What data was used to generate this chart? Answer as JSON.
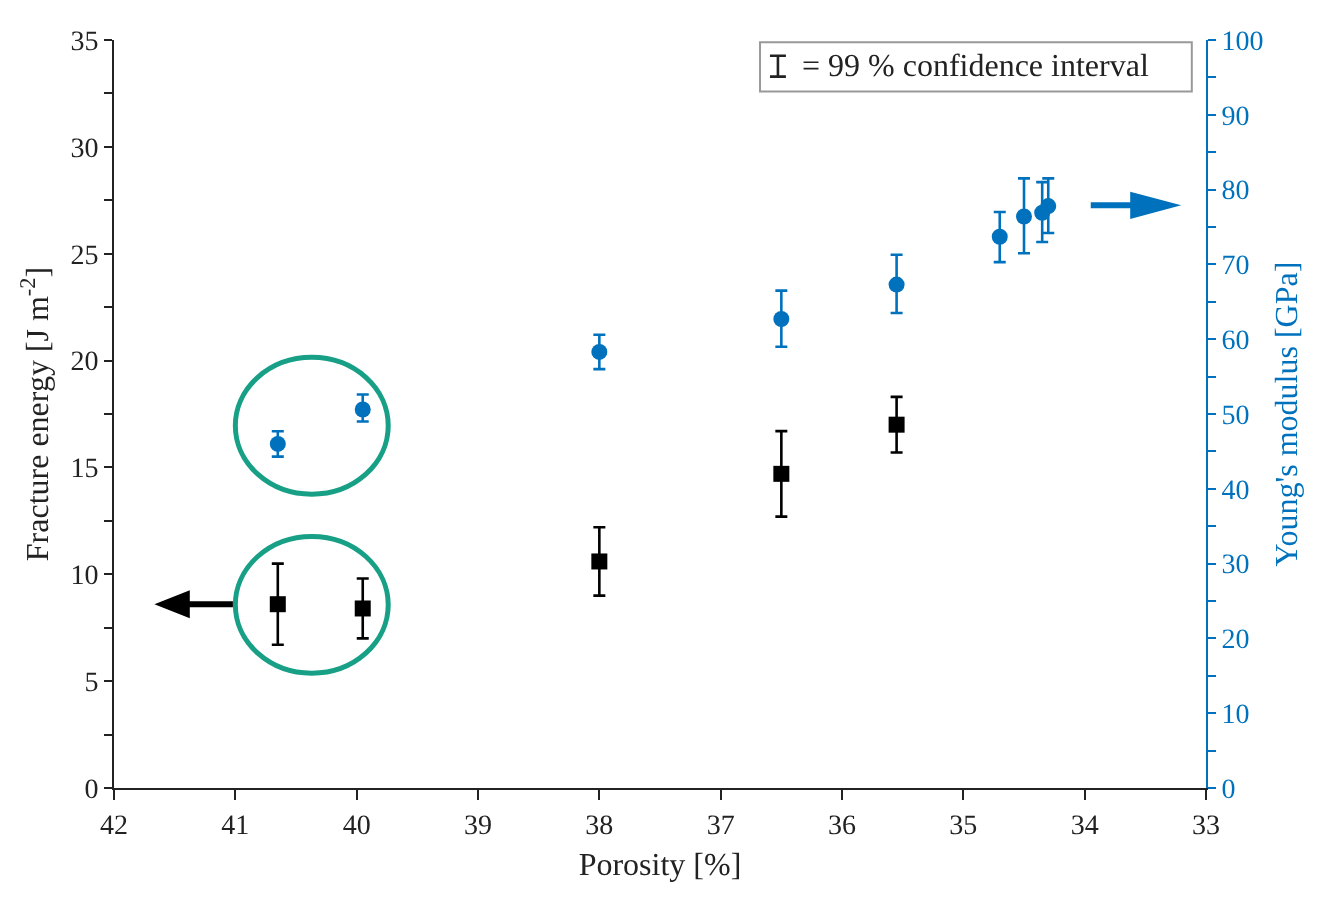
{
  "chart_data": {
    "type": "scatter",
    "xlabel": "Porosity [%]",
    "ylabel": "Fracture energy [J m$^{-2}$]",
    "y2label": "Young's modulus [GPa]",
    "annotations": [
      "= 99 % confidence interval"
    ],
    "xlim": [
      42,
      33
    ],
    "xticks": [
      42,
      41,
      40,
      39,
      38,
      37,
      36,
      35,
      34,
      33
    ],
    "ylim": [
      0,
      35
    ],
    "yticks": [
      0,
      {
        "value": 2.5,
        "label": null
      },
      5,
      {
        "value": 7.5,
        "label": null
      },
      10,
      {
        "value": 12.5,
        "label": null
      },
      15,
      {
        "value": 17.5,
        "label": null
      },
      20,
      {
        "value": 22.5,
        "label": null
      },
      25,
      {
        "value": 27.5,
        "label": null
      },
      30,
      {
        "value": 32.5,
        "label": null
      },
      35
    ],
    "y2lim": [
      0,
      100
    ],
    "y2ticks": [
      0,
      {
        "value": 5,
        "label": null
      },
      10,
      {
        "value": 15,
        "label": null
      },
      20,
      {
        "value": 25,
        "label": null
      },
      30,
      {
        "value": 35,
        "label": null
      },
      40,
      {
        "value": 45,
        "label": null
      },
      50,
      {
        "value": 55,
        "label": null
      },
      60,
      {
        "value": 65,
        "label": null
      },
      70,
      {
        "value": 75,
        "label": null
      },
      80,
      {
        "value": 85,
        "label": null
      },
      90,
      {
        "value": 95,
        "label": null
      },
      100
    ],
    "series": [
      {
        "color": "#000000",
        "marker": "square",
        "x": [
          40.65,
          39.95,
          38.0,
          36.5,
          35.55
        ],
        "values": [
          8.6,
          8.4,
          10.6,
          14.7,
          17.0
        ],
        "errors": [
          [
            6.7,
            10.5
          ],
          [
            7.0,
            9.8
          ],
          [
            9.0,
            12.2
          ],
          [
            12.7,
            16.7
          ],
          [
            15.7,
            18.3
          ]
        ]
      },
      {
        "color": "#0072bd",
        "marker": "circle",
        "axis": "y2",
        "x": [
          40.65,
          39.95,
          38.0,
          36.5,
          35.55,
          34.7,
          34.5,
          34.35,
          34.3
        ],
        "values": [
          46,
          50.6,
          58.3,
          62.7,
          67.3,
          73.7,
          76.4,
          76.9,
          77.8
        ],
        "errors": [
          [
            44.3,
            47.7
          ],
          [
            49,
            52.6
          ],
          [
            56,
            60.6
          ],
          [
            59,
            66.5
          ],
          [
            63.5,
            71.3
          ],
          [
            70.3,
            77
          ],
          [
            71.5,
            81.5
          ],
          [
            73,
            81
          ],
          [
            74.2,
            81.5
          ]
        ]
      }
    ]
  }
}
